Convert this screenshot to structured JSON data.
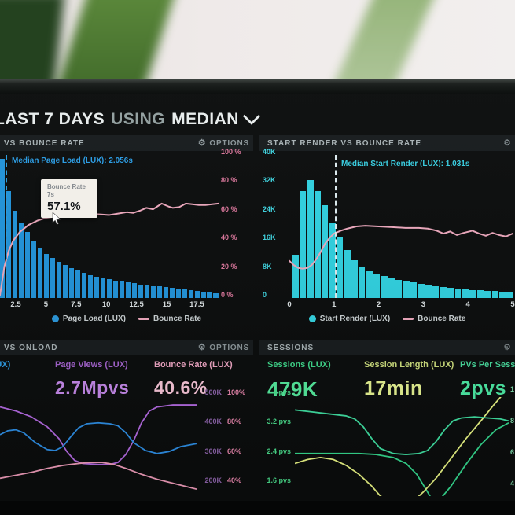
{
  "header": {
    "range": "LAST 7 DAYS",
    "using": "USING",
    "metric": "MEDIAN"
  },
  "panels": {
    "page_load": {
      "options_label": "OPTIONS",
      "gear_icon": "gear"
    },
    "start_render": {
      "gear_icon": "gear"
    },
    "onload": {
      "options_label": "OPTIONS",
      "metrics": [
        {
          "label": "(LUX)",
          "value": "",
          "color": "#2e9de4",
          "value_color": "#2e9de4"
        },
        {
          "label": "Page Views (LUX)",
          "value": "2.7Mpvs",
          "color": "#a765d2",
          "value_color": "#c78aec"
        },
        {
          "label": "Bounce Rate (LUX)",
          "value": "40.6%",
          "color": "#f2a8c6",
          "value_color": "#fac7da"
        }
      ]
    },
    "sessions": {
      "metrics": [
        {
          "label": "Sessions (LUX)",
          "value": "479K",
          "color": "#3fd98c",
          "value_color": "#55eb9e"
        },
        {
          "label": "Session Length (LUX)",
          "value": "17min",
          "color": "#cfe07e",
          "value_color": "#e9f693"
        },
        {
          "label": "PVs Per Sessio",
          "value": "2pvs",
          "color": "#49dfa0",
          "value_color": "#4deca6"
        }
      ]
    }
  },
  "chart_data": [
    {
      "id": "page-load-vs-bounce-rate",
      "type": "histogram+line",
      "title": "VS BOUNCE RATE",
      "x_ticks": [
        "2.5",
        "5",
        "7.5",
        "10",
        "12.5",
        "15",
        "17.5"
      ],
      "x_unit": "seconds",
      "y_right_ticks": [
        "100 %",
        "80 %",
        "60 %",
        "40 %",
        "20 %",
        "0 %"
      ],
      "median_annotation": "Median Page Load (LUX): 2.056s",
      "median_value_s": 2.056,
      "bar_color": "#2295dc",
      "bars_pct_of_max": [
        97,
        75,
        61,
        53,
        46,
        40,
        35,
        31,
        28,
        25.5,
        23,
        21,
        19,
        17.5,
        16,
        15,
        14,
        13,
        12.2,
        11.5,
        10.8,
        10.2,
        9.6,
        9,
        8.5,
        8,
        7.5,
        7,
        6.5,
        6,
        5.5,
        5,
        4.5,
        4,
        3.5
      ],
      "bounce_line": {
        "name": "Bounce Rate",
        "color": "#efaabf",
        "unit": "%",
        "pts": [
          [
            0,
            2
          ],
          [
            1,
            12
          ],
          [
            2,
            22
          ],
          [
            4,
            33
          ],
          [
            6,
            40
          ],
          [
            9,
            46
          ],
          [
            13,
            51
          ],
          [
            17,
            54
          ],
          [
            21,
            56
          ],
          [
            26,
            57.1
          ],
          [
            30,
            58
          ],
          [
            35,
            58.5
          ],
          [
            40,
            59
          ],
          [
            45,
            58.5
          ],
          [
            50,
            58
          ],
          [
            54,
            59
          ],
          [
            58,
            60
          ],
          [
            61,
            59.5
          ],
          [
            64,
            61
          ],
          [
            67,
            63
          ],
          [
            70,
            62
          ],
          [
            72,
            64
          ],
          [
            74,
            66
          ],
          [
            77,
            64
          ],
          [
            79,
            63
          ],
          [
            82,
            63.5
          ],
          [
            85,
            66
          ],
          [
            88,
            65.5
          ],
          [
            91,
            65
          ],
          [
            94,
            65
          ],
          [
            97,
            65.5
          ],
          [
            100,
            66
          ]
        ]
      },
      "highlight": {
        "title": "Bounce Rate",
        "subtitle": "7s",
        "value": "57.1%"
      },
      "legend": [
        {
          "label": "Page Load (LUX)",
          "color": "#2b9ade",
          "marker": "dot"
        },
        {
          "label": "Bounce Rate",
          "color": "#efaabf",
          "marker": "line"
        }
      ]
    },
    {
      "id": "start-render-vs-bounce-rate",
      "type": "histogram+line",
      "title": "START RENDER VS BOUNCE RATE",
      "x_ticks": [
        "0",
        "1",
        "2",
        "3",
        "4",
        "5"
      ],
      "x_unit": "seconds",
      "y_left_ticks": [
        "40K",
        "32K",
        "24K",
        "16K",
        "8K",
        "0"
      ],
      "y_max_k": 40,
      "median_annotation": "Median Start Render (LUX): 1.031s",
      "median_value_s": 1.031,
      "bar_color": "#31d3e2",
      "bars_k": [
        12,
        30,
        33,
        30,
        26,
        21,
        17,
        13.5,
        10.5,
        8.5,
        7.5,
        6.8,
        6.2,
        5.6,
        5.1,
        4.7,
        4.3,
        3.9,
        3.6,
        3.3,
        3,
        2.8,
        2.6,
        2.4,
        2.3,
        2.1,
        2,
        1.9,
        1.8,
        1.7
      ],
      "bounce_line": {
        "name": "Bounce Rate",
        "color": "#efaabf",
        "unit": "%",
        "pts": [
          [
            0,
            26
          ],
          [
            2,
            23
          ],
          [
            4,
            21
          ],
          [
            6,
            20.5
          ],
          [
            8,
            21
          ],
          [
            10,
            23
          ],
          [
            12,
            27
          ],
          [
            14,
            32
          ],
          [
            16,
            38
          ],
          [
            18,
            42
          ],
          [
            20,
            45
          ],
          [
            23,
            47
          ],
          [
            26,
            48.5
          ],
          [
            30,
            50
          ],
          [
            34,
            50.5
          ],
          [
            40,
            50
          ],
          [
            46,
            49.5
          ],
          [
            52,
            49
          ],
          [
            58,
            49
          ],
          [
            62,
            48.5
          ],
          [
            66,
            47
          ],
          [
            69,
            45
          ],
          [
            72,
            46.5
          ],
          [
            75,
            44
          ],
          [
            78,
            45.5
          ],
          [
            82,
            47
          ],
          [
            85,
            45
          ],
          [
            88,
            43.5
          ],
          [
            91,
            45.5
          ],
          [
            94,
            44
          ],
          [
            97,
            43
          ],
          [
            100,
            45
          ]
        ]
      },
      "legend": [
        {
          "label": "Start Render (LUX)",
          "color": "#35d6e3",
          "marker": "dot"
        },
        {
          "label": "Bounce Rate",
          "color": "#efaabf",
          "marker": "line"
        }
      ]
    },
    {
      "id": "onload-trends",
      "type": "line",
      "title": "VS ONLOAD",
      "right_axis_k": [
        "500K",
        "400K",
        "300K",
        "200K"
      ],
      "right_axis_pct": [
        "100%",
        "80%",
        "60%",
        "40%"
      ],
      "series": [
        {
          "name": "(LUX)",
          "color": "#2e8fe6",
          "pts": [
            [
              0,
              38
            ],
            [
              4,
              34
            ],
            [
              8,
              33
            ],
            [
              12,
              36
            ],
            [
              18,
              46
            ],
            [
              24,
              53
            ],
            [
              28,
              54
            ],
            [
              32,
              50
            ],
            [
              36,
              40
            ],
            [
              40,
              31
            ],
            [
              44,
              27
            ],
            [
              50,
              26
            ],
            [
              56,
              27
            ],
            [
              60,
              29
            ],
            [
              64,
              36
            ],
            [
              68,
              46
            ],
            [
              74,
              54
            ],
            [
              80,
              57
            ],
            [
              86,
              55
            ],
            [
              92,
              50
            ],
            [
              100,
              47
            ]
          ]
        },
        {
          "name": "Page Views (LUX)",
          "color": "#b46ae2",
          "pts": [
            [
              0,
              10
            ],
            [
              8,
              14
            ],
            [
              16,
              20
            ],
            [
              24,
              30
            ],
            [
              30,
              42
            ],
            [
              34,
              55
            ],
            [
              38,
              64
            ],
            [
              42,
              67
            ],
            [
              50,
              68
            ],
            [
              56,
              68
            ],
            [
              60,
              66
            ],
            [
              64,
              58
            ],
            [
              68,
              44
            ],
            [
              72,
              26
            ],
            [
              76,
              14
            ],
            [
              80,
              10
            ],
            [
              88,
              8
            ],
            [
              100,
              8
            ]
          ]
        },
        {
          "name": "Bounce Rate (LUX)",
          "color": "#ef9cba",
          "pts": [
            [
              0,
              82
            ],
            [
              8,
              79
            ],
            [
              16,
              76
            ],
            [
              24,
              72
            ],
            [
              32,
              69
            ],
            [
              40,
              67
            ],
            [
              46,
              66
            ],
            [
              52,
              66
            ],
            [
              58,
              68
            ],
            [
              64,
              72
            ],
            [
              72,
              78
            ],
            [
              80,
              83
            ],
            [
              88,
              87
            ],
            [
              94,
              90
            ],
            [
              100,
              93
            ]
          ]
        }
      ]
    },
    {
      "id": "sessions-trends",
      "type": "line",
      "title": "SESSIONS",
      "left_axis": [
        "4 pvs",
        "3.2 pvs",
        "2.4 pvs",
        "1.6 pvs"
      ],
      "right_axis_cut": [
        "1",
        "8",
        "6",
        "4"
      ],
      "series": [
        {
          "name": "Sessions (LUX)",
          "color": "#40e0a2",
          "pts": [
            [
              0,
              13
            ],
            [
              8,
              15
            ],
            [
              16,
              17
            ],
            [
              24,
              19
            ],
            [
              28,
              22
            ],
            [
              32,
              30
            ],
            [
              36,
              42
            ],
            [
              40,
              52
            ],
            [
              46,
              57
            ],
            [
              52,
              58
            ],
            [
              58,
              57
            ],
            [
              62,
              54
            ],
            [
              66,
              45
            ],
            [
              70,
              33
            ],
            [
              74,
              24
            ],
            [
              78,
              21
            ],
            [
              84,
              20
            ],
            [
              90,
              21
            ],
            [
              96,
              22
            ],
            [
              100,
              24
            ]
          ]
        },
        {
          "name": "PVs Per Session",
          "color": "#35d98f",
          "pts": [
            [
              0,
              57
            ],
            [
              30,
              57
            ],
            [
              38,
              58
            ],
            [
              46,
              61
            ],
            [
              52,
              67
            ],
            [
              57,
              78
            ],
            [
              61,
              92
            ],
            [
              64,
              103
            ],
            [
              68,
              103
            ],
            [
              73,
              90
            ],
            [
              80,
              68
            ],
            [
              87,
              48
            ],
            [
              94,
              33
            ],
            [
              100,
              26
            ]
          ]
        },
        {
          "name": "Session Length (LUX)",
          "color": "#e9f584",
          "pts": [
            [
              0,
              67
            ],
            [
              6,
              63
            ],
            [
              12,
              61
            ],
            [
              18,
              63
            ],
            [
              24,
              69
            ],
            [
              30,
              78
            ],
            [
              36,
              90
            ],
            [
              40,
              100
            ],
            [
              46,
              106
            ],
            [
              55,
              106
            ],
            [
              60,
              96
            ],
            [
              66,
              82
            ],
            [
              73,
              62
            ],
            [
              80,
              42
            ],
            [
              87,
              24
            ],
            [
              93,
              8
            ],
            [
              97,
              -2
            ]
          ]
        }
      ]
    }
  ]
}
